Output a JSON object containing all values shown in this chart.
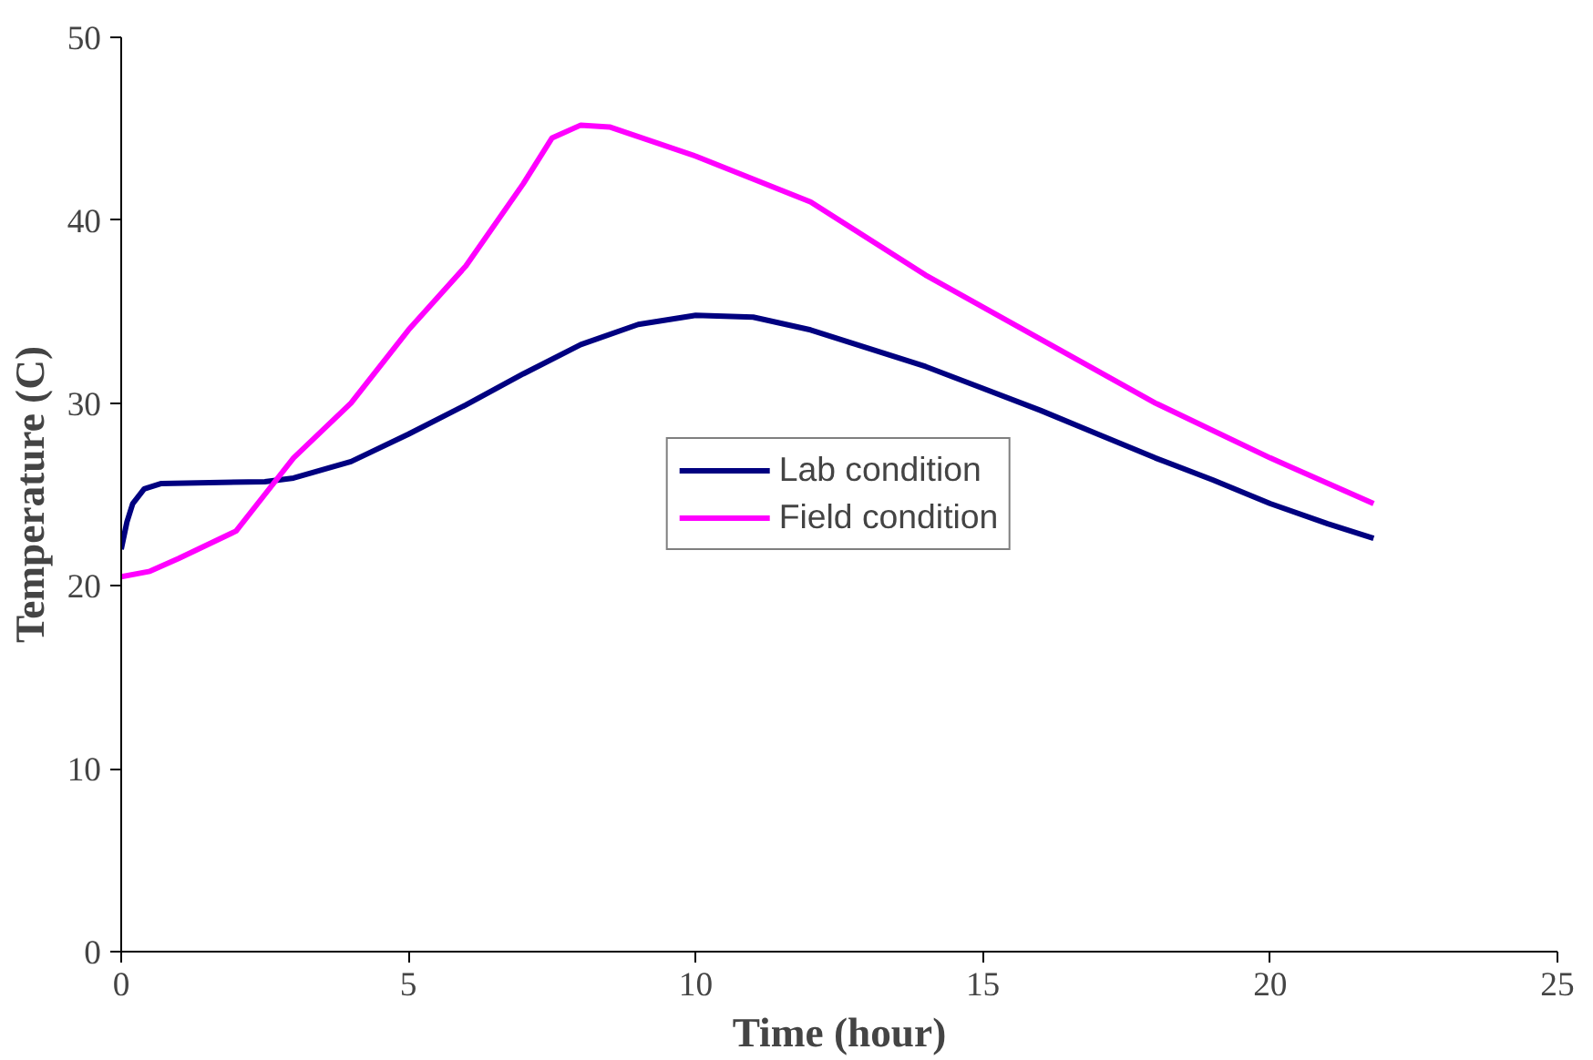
{
  "chart_data": {
    "type": "line",
    "xlabel": "Time (hour)",
    "ylabel": "Temperature (C)",
    "xlim": [
      0,
      25
    ],
    "ylim": [
      0,
      50
    ],
    "xticks": [
      0,
      5,
      10,
      15,
      20,
      25
    ],
    "yticks": [
      0,
      10,
      20,
      30,
      40,
      50
    ],
    "grid": false,
    "legend": "center",
    "marker": "none",
    "line_style": "solid",
    "series": [
      {
        "name": "Lab condition",
        "color": "#000080",
        "x": [
          0,
          0.1,
          0.2,
          0.4,
          0.7,
          2.5,
          3,
          4,
          5,
          6,
          7,
          8,
          9,
          10,
          11,
          12,
          13,
          14,
          15,
          16,
          17,
          18,
          19,
          20,
          21,
          21.8
        ],
        "values": [
          22,
          23.5,
          24.5,
          25.3,
          25.6,
          25.7,
          25.9,
          26.8,
          28.3,
          29.9,
          31.6,
          33.2,
          34.3,
          34.8,
          34.7,
          34,
          33,
          32,
          30.8,
          29.6,
          28.3,
          27,
          25.8,
          24.5,
          23.4,
          22.6
        ]
      },
      {
        "name": "Field condition",
        "color": "#ff00ff",
        "x": [
          0,
          0.5,
          1,
          2,
          2.5,
          3,
          4,
          5,
          6,
          7,
          7.5,
          8,
          8.5,
          10,
          12,
          14,
          16,
          18,
          20,
          21.8
        ],
        "values": [
          20.5,
          20.8,
          21.5,
          23,
          25,
          27,
          30,
          34,
          37.5,
          42,
          44.5,
          45.2,
          45.1,
          43.5,
          41,
          37,
          33.5,
          30,
          27,
          24.5
        ]
      }
    ]
  }
}
